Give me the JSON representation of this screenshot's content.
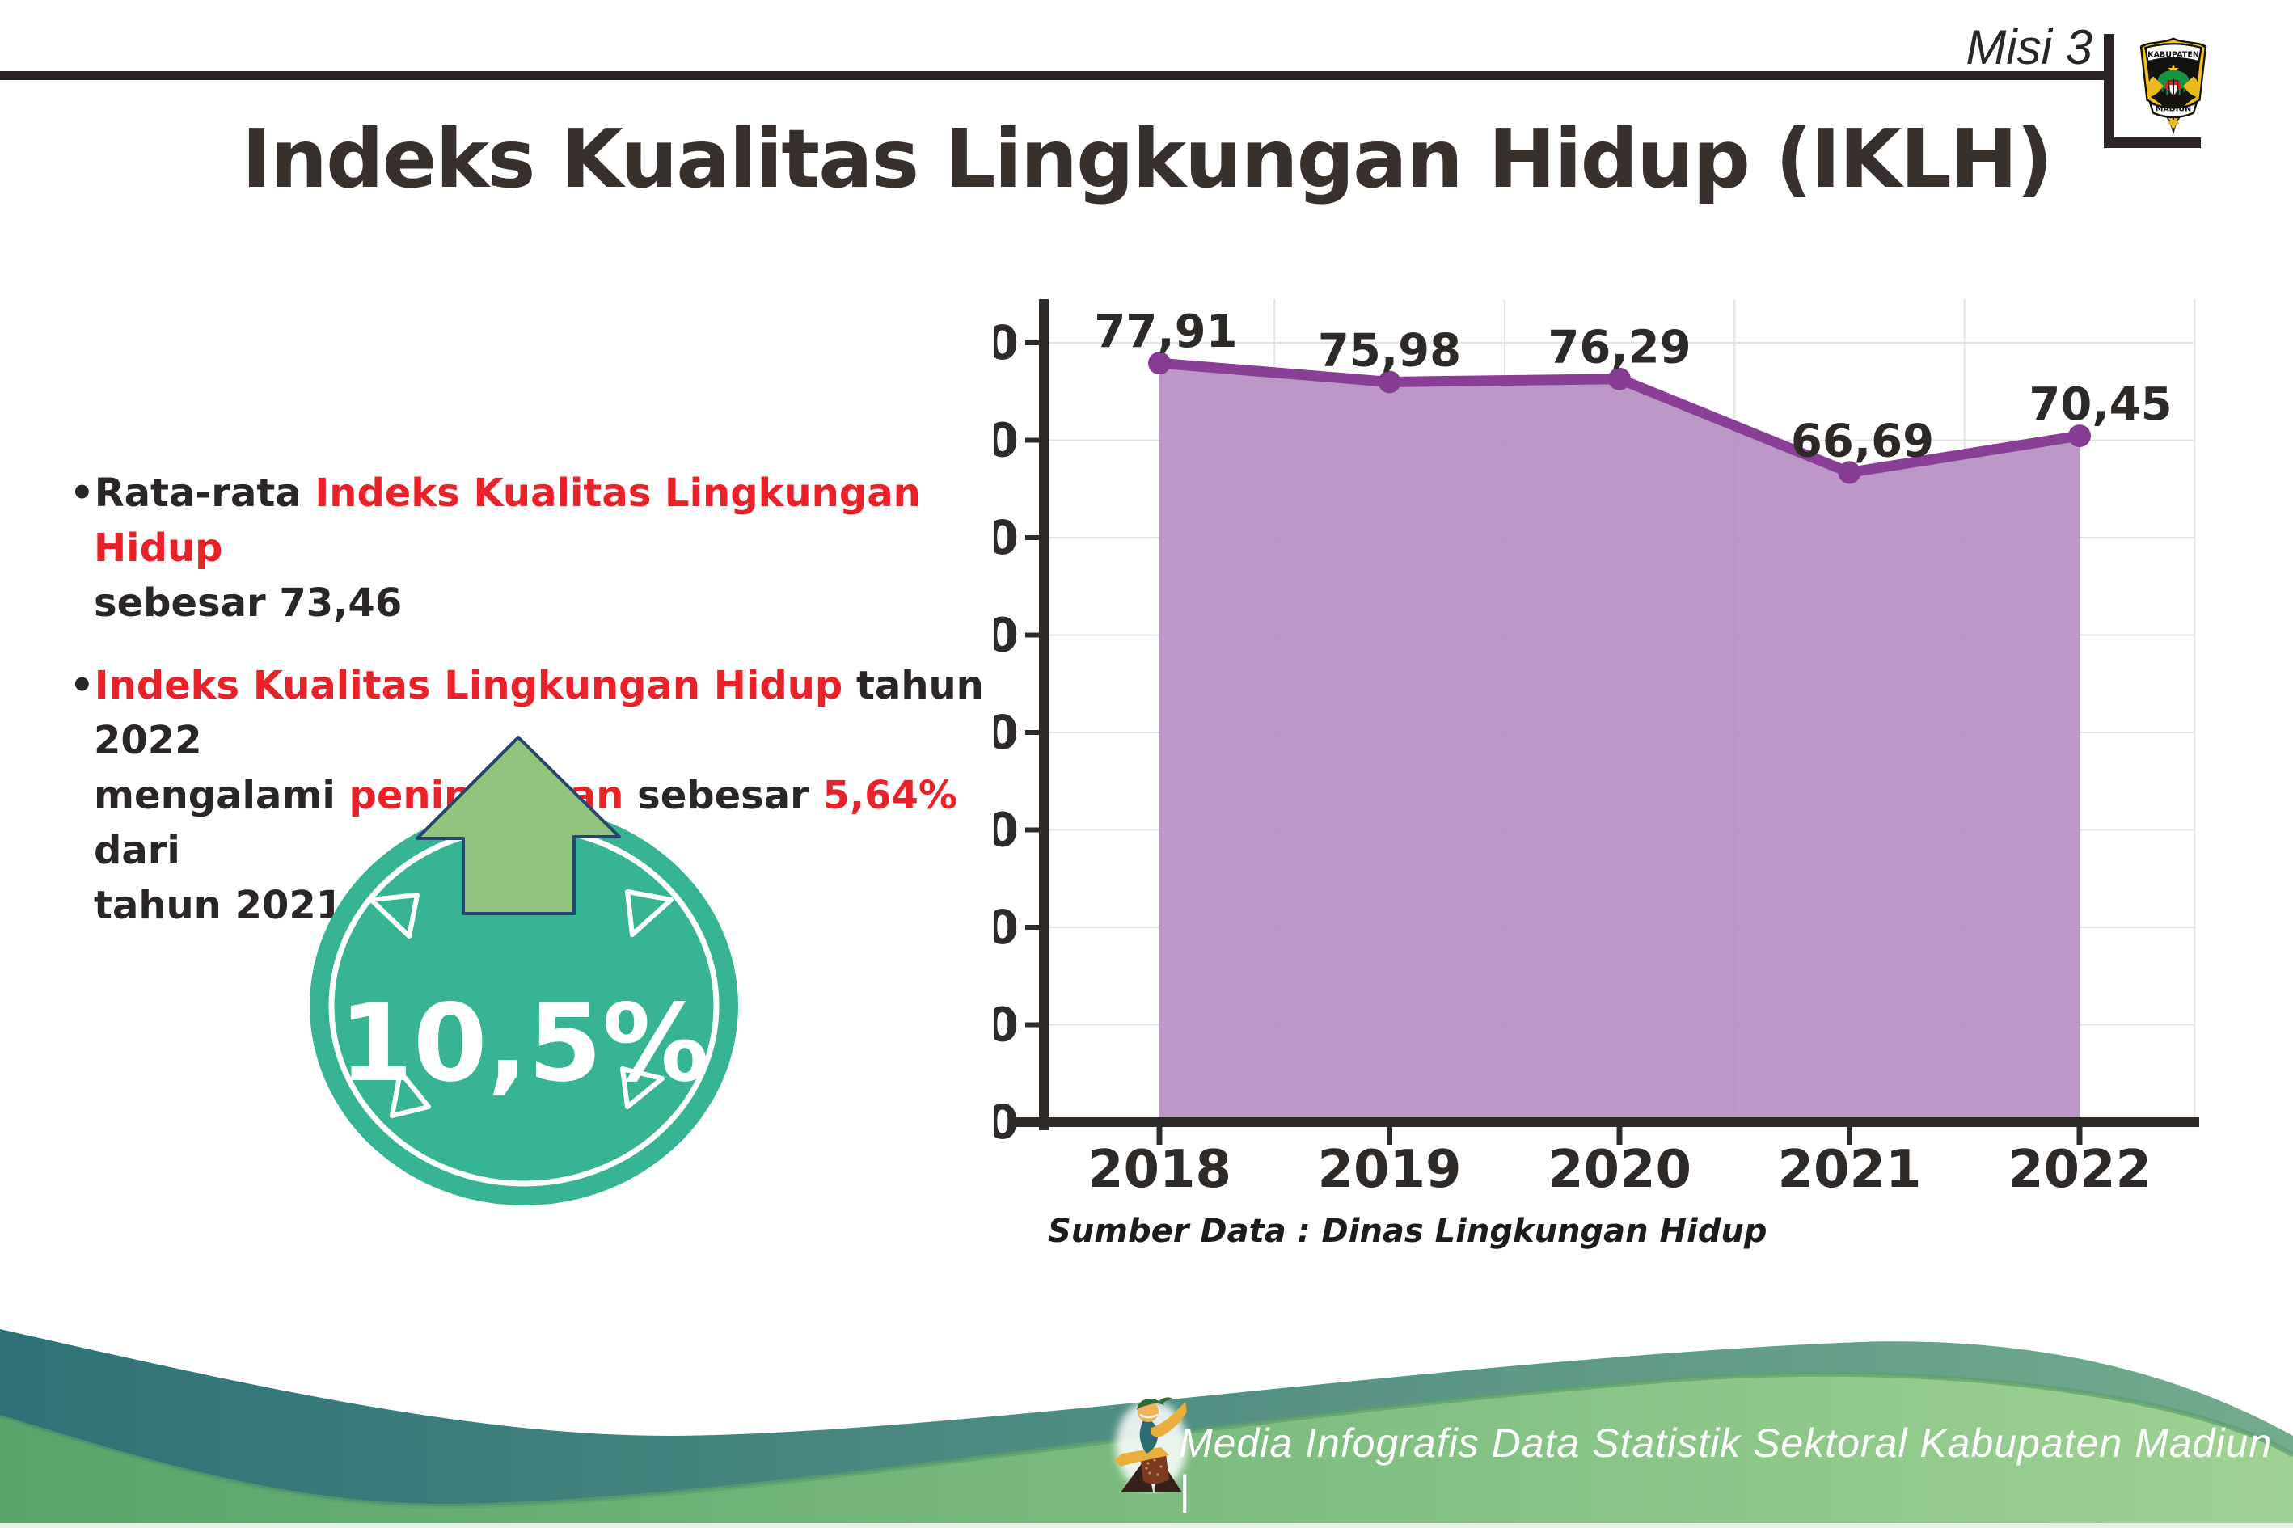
{
  "header": {
    "misi_label": "Misi 3",
    "title": "Indeks Kualitas Lingkungan Hidup (IKLH)",
    "logo": {
      "text_top": "KABUPATEN",
      "text_bottom": "MADIUN"
    }
  },
  "insights": {
    "bullet_char": "•",
    "bullet1": {
      "t1": "Rata-rata ",
      "t2": "Indeks Kualitas Lingkungan Hidup",
      "t3": "sebesar 73,46"
    },
    "bullet2": {
      "t1": "Indeks Kualitas Lingkungan Hidup",
      "t2": " tahun 2022",
      "t3": "mengalami ",
      "t4": "peningkatan",
      "t5": " sebesar ",
      "t6": "5,64%",
      "t7": " dari",
      "t8": "tahun 2021"
    },
    "badge_value": "10,5%"
  },
  "chart_data": {
    "type": "area",
    "title": "",
    "xlabel": "",
    "ylabel": "",
    "categories": [
      "2018",
      "2019",
      "2020",
      "2021",
      "2022"
    ],
    "values": [
      77.91,
      75.98,
      76.29,
      66.69,
      70.45
    ],
    "value_labels": [
      "77,91",
      "75,98",
      "76,29",
      "66,69",
      "70,45"
    ],
    "ylim": [
      0,
      80
    ],
    "ytick_step": 10,
    "grid": true,
    "legend": false,
    "source_note": "Sumber Data : Dinas Lingkungan Hidup",
    "line_color": "#8a3f97",
    "fill_color": "#b58cc2",
    "marker_color": "#873c94",
    "axis_color": "#2e2a28",
    "grid_color": "#e4e4e2"
  },
  "footer": {
    "credit": "Media Infografis Data Statistik Sektoral Kabupaten Madiun |"
  },
  "theme": {
    "accent_red": "#e82228",
    "text_dark": "#2a2526",
    "title_color": "#38302c",
    "rule_color": "#2b2523",
    "badge_teal": "#36b493",
    "arrow_green": "#93c47d",
    "arrow_outline": "#27456e",
    "footer_teal_start": "#2e7277",
    "footer_teal_end": "#73ab8e",
    "footer_green_start": "#57a56b",
    "footer_green_end": "#9fd194"
  }
}
